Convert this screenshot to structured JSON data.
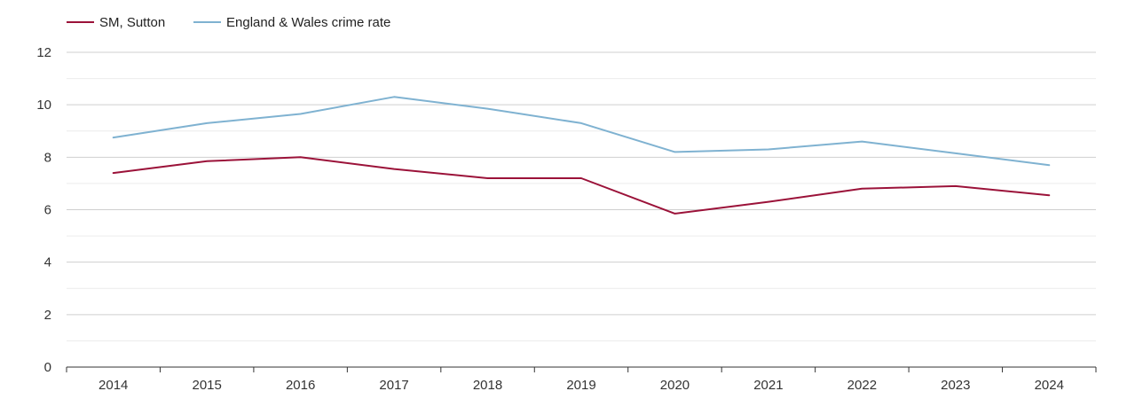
{
  "chart_data": {
    "type": "line",
    "title": "",
    "xlabel": "",
    "ylabel": "",
    "categories": [
      "2014",
      "2015",
      "2016",
      "2017",
      "2018",
      "2019",
      "2020",
      "2021",
      "2022",
      "2023",
      "2024"
    ],
    "ylim": [
      0,
      12
    ],
    "yticks": [
      "0",
      "2",
      "4",
      "6",
      "8",
      "10",
      "12"
    ],
    "grid": true,
    "legend_position": "top-left",
    "series": [
      {
        "name": "SM, Sutton",
        "color": "#9b1239",
        "values": [
          7.4,
          7.85,
          8.0,
          7.55,
          7.2,
          7.2,
          5.85,
          6.3,
          6.8,
          6.9,
          6.55
        ]
      },
      {
        "name": "England & Wales crime rate",
        "color": "#7fb2d1",
        "values": [
          8.75,
          9.3,
          9.65,
          10.3,
          9.85,
          9.3,
          8.2,
          8.3,
          8.6,
          8.15,
          7.7
        ]
      }
    ]
  }
}
